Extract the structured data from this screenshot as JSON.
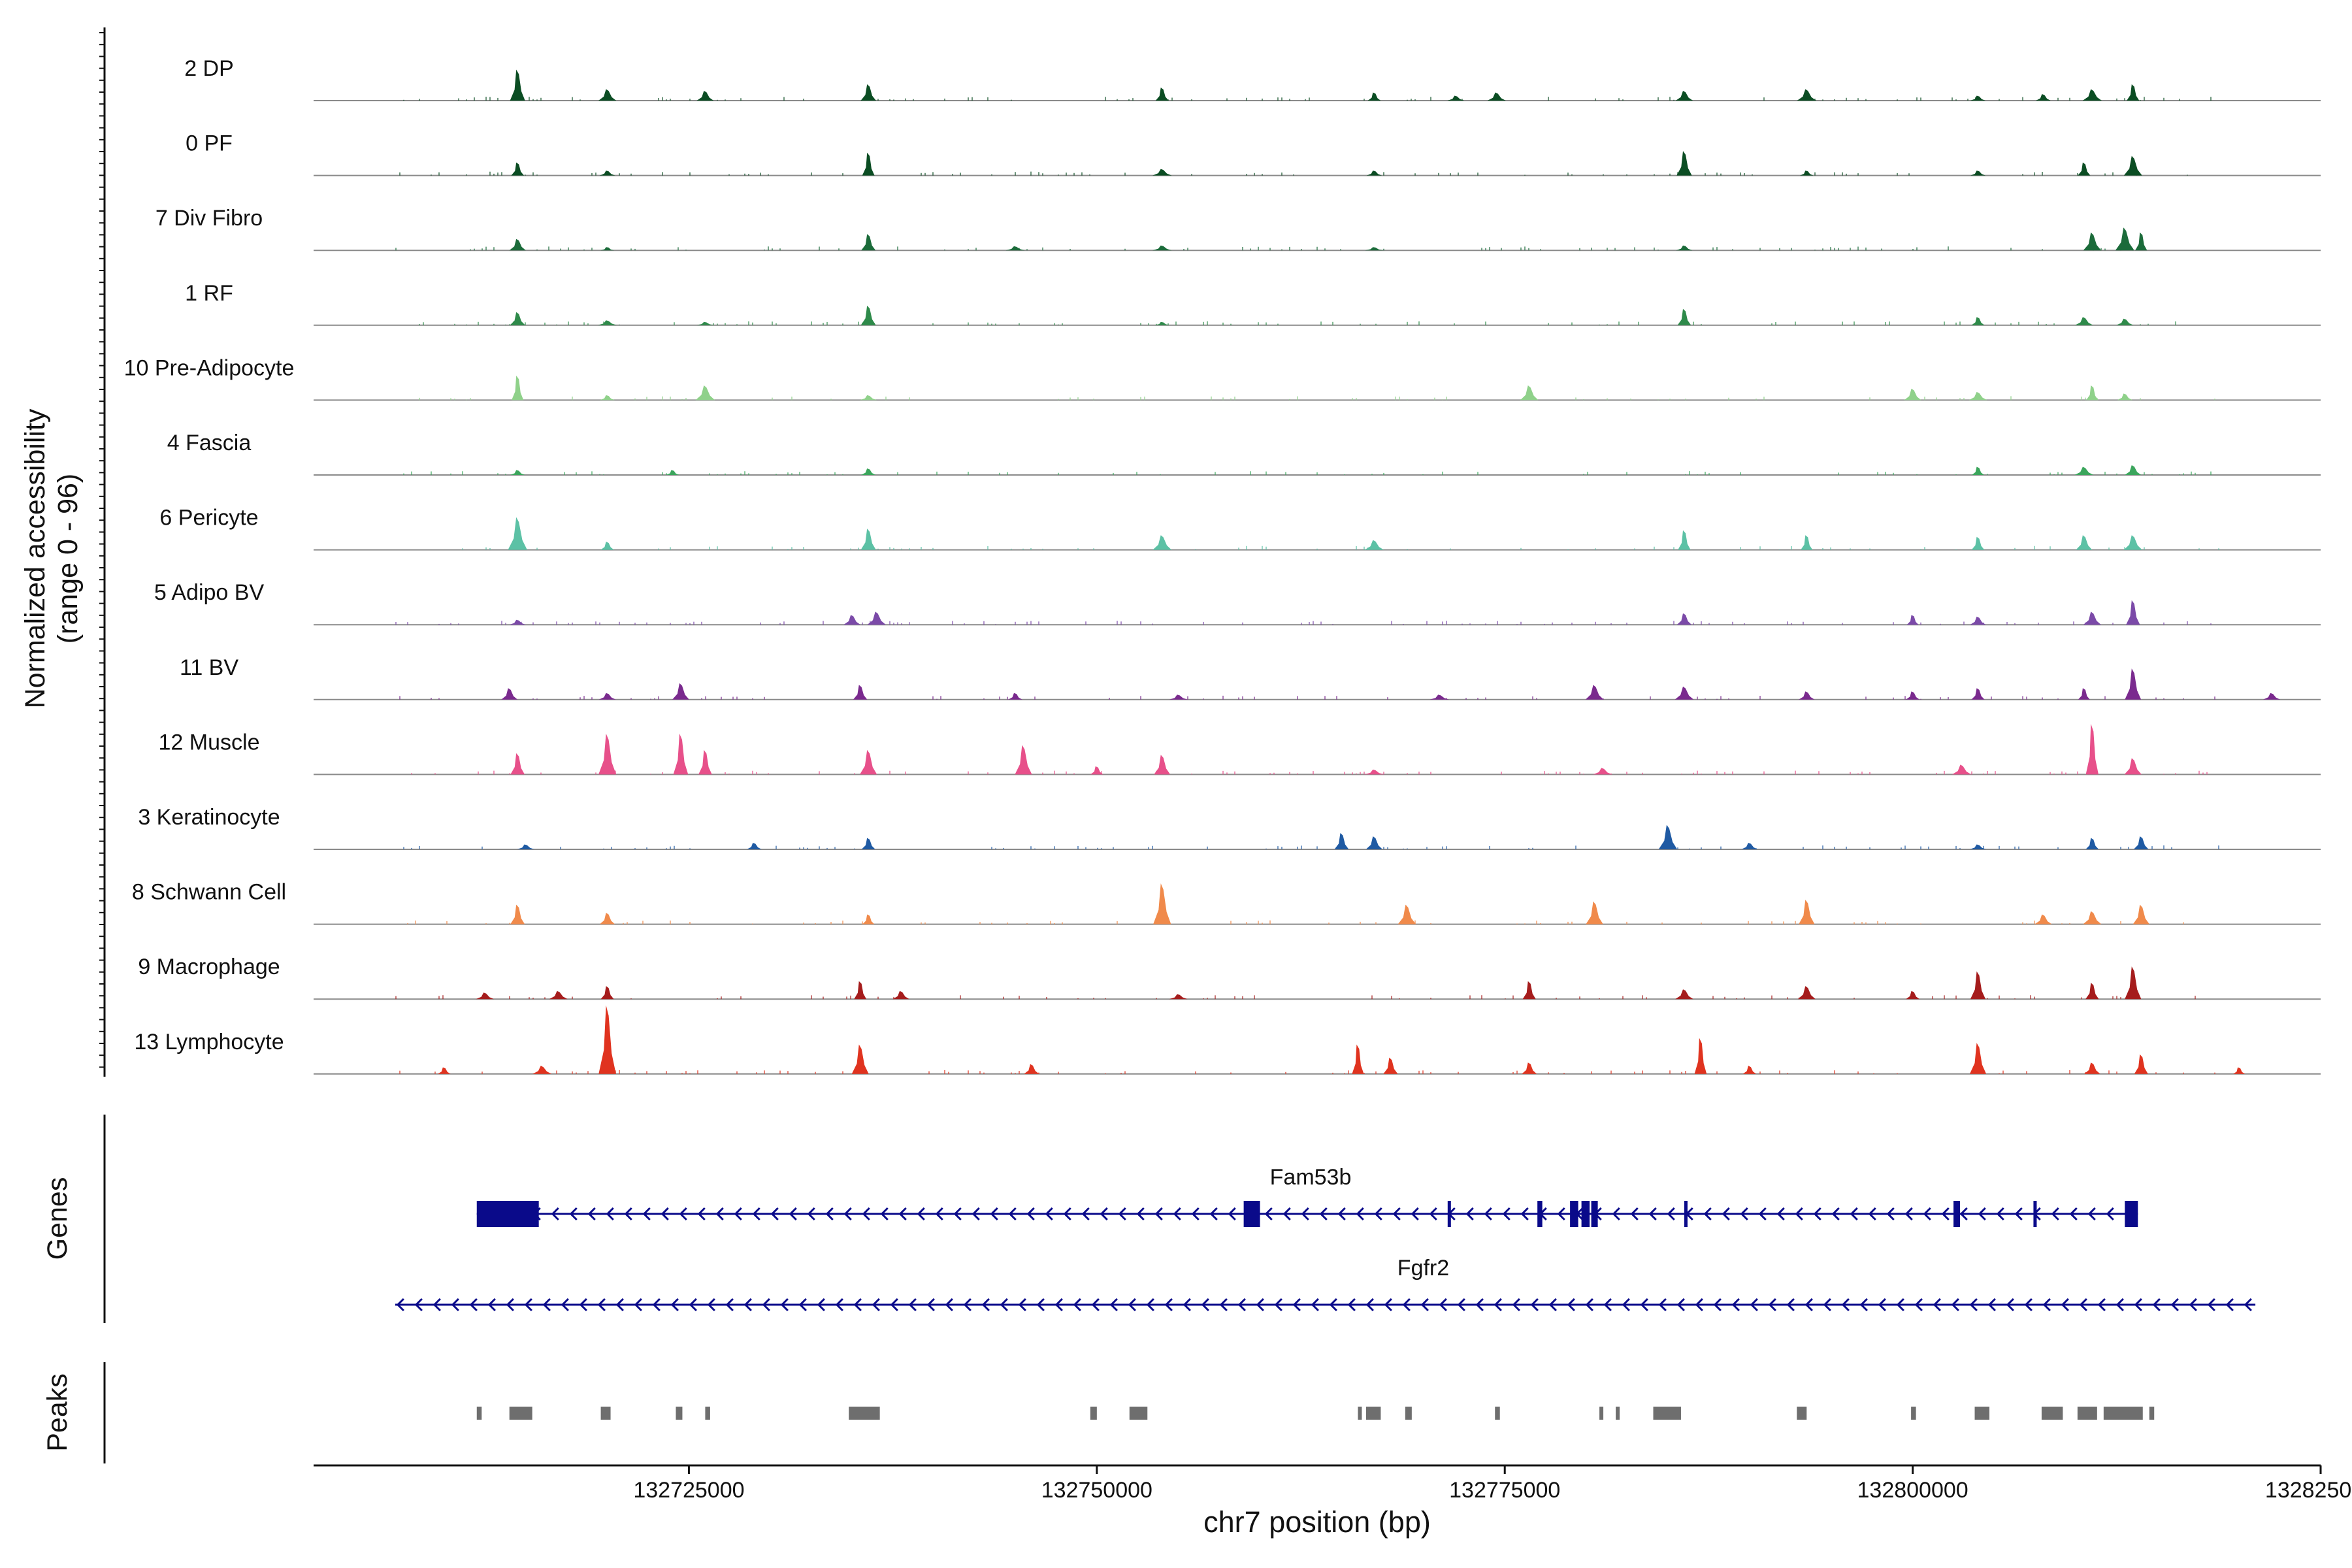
{
  "chart_data": {
    "type": "genome-track",
    "title": "",
    "ylabel_line1": "Normalized accessibility",
    "ylabel_line2": "(range 0 - 96)",
    "y_range": [
      0,
      96
    ],
    "xlabel": "chr7 position (bp)",
    "xlim": [
      132702000,
      132825000
    ],
    "xticks": [
      132725000,
      132750000,
      132775000,
      132800000,
      132825000
    ],
    "xtick_labels": [
      "132725000",
      "132750000",
      "132775000",
      "132800000",
      "132825000"
    ],
    "tracks": [
      {
        "name": "2 DP",
        "color": "#0b4d23",
        "peaks": [
          [
            132714500,
            38
          ],
          [
            132720000,
            14
          ],
          [
            132726000,
            12
          ],
          [
            132736000,
            20
          ],
          [
            132754000,
            16
          ],
          [
            132767000,
            10
          ],
          [
            132772000,
            6
          ],
          [
            132774500,
            10
          ],
          [
            132786000,
            12
          ],
          [
            132793500,
            14
          ],
          [
            132804000,
            6
          ],
          [
            132808000,
            8
          ],
          [
            132811000,
            14
          ],
          [
            132813500,
            20
          ]
        ]
      },
      {
        "name": "0 PF",
        "color": "#0b4d23",
        "peaks": [
          [
            132714500,
            16
          ],
          [
            132720000,
            6
          ],
          [
            132736000,
            28
          ],
          [
            132754000,
            8
          ],
          [
            132767000,
            6
          ],
          [
            132786000,
            30
          ],
          [
            132793500,
            6
          ],
          [
            132804000,
            6
          ],
          [
            132810500,
            16
          ],
          [
            132813500,
            24
          ]
        ]
      },
      {
        "name": "7 Div Fibro",
        "color": "#1b6b3a",
        "peaks": [
          [
            132714500,
            14
          ],
          [
            132720000,
            4
          ],
          [
            132736000,
            20
          ],
          [
            132745000,
            5
          ],
          [
            132754000,
            6
          ],
          [
            132767000,
            4
          ],
          [
            132786000,
            6
          ],
          [
            132811000,
            22
          ],
          [
            132813000,
            28
          ],
          [
            132814000,
            22
          ]
        ]
      },
      {
        "name": "1 RF",
        "color": "#2e8a4a",
        "peaks": [
          [
            132714500,
            16
          ],
          [
            132720000,
            6
          ],
          [
            132726000,
            4
          ],
          [
            132736000,
            24
          ],
          [
            132754000,
            4
          ],
          [
            132786000,
            20
          ],
          [
            132804000,
            10
          ],
          [
            132810500,
            10
          ],
          [
            132813000,
            8
          ]
        ]
      },
      {
        "name": "10 Pre-Adipocyte",
        "color": "#8fd18a",
        "peaks": [
          [
            132714500,
            30
          ],
          [
            132720000,
            6
          ],
          [
            132726000,
            18
          ],
          [
            132736000,
            6
          ],
          [
            132776500,
            18
          ],
          [
            132800000,
            14
          ],
          [
            132804000,
            10
          ],
          [
            132811000,
            18
          ],
          [
            132813000,
            8
          ]
        ]
      },
      {
        "name": "4 Fascia",
        "color": "#3ba55c",
        "peaks": [
          [
            132714500,
            6
          ],
          [
            132724000,
            6
          ],
          [
            132736000,
            8
          ],
          [
            132804000,
            10
          ],
          [
            132810500,
            10
          ],
          [
            132813500,
            12
          ]
        ]
      },
      {
        "name": "6 Pericyte",
        "color": "#5cc1a5",
        "peaks": [
          [
            132714500,
            40
          ],
          [
            132720000,
            10
          ],
          [
            132736000,
            26
          ],
          [
            132754000,
            18
          ],
          [
            132767000,
            12
          ],
          [
            132786000,
            24
          ],
          [
            132793500,
            18
          ],
          [
            132804000,
            16
          ],
          [
            132810500,
            18
          ],
          [
            132813500,
            18
          ]
        ]
      },
      {
        "name": "5 Adipo BV",
        "color": "#7b4aa8",
        "peaks": [
          [
            132714500,
            6
          ],
          [
            132735000,
            12
          ],
          [
            132736500,
            16
          ],
          [
            132786000,
            14
          ],
          [
            132800000,
            12
          ],
          [
            132804000,
            10
          ],
          [
            132811000,
            16
          ],
          [
            132813500,
            30
          ]
        ]
      },
      {
        "name": "11 BV",
        "color": "#7a2a8e",
        "peaks": [
          [
            132714000,
            14
          ],
          [
            132720000,
            8
          ],
          [
            132724500,
            20
          ],
          [
            132735500,
            18
          ],
          [
            132745000,
            8
          ],
          [
            132755000,
            6
          ],
          [
            132771000,
            6
          ],
          [
            132780500,
            18
          ],
          [
            132786000,
            16
          ],
          [
            132793500,
            10
          ],
          [
            132800000,
            10
          ],
          [
            132804000,
            14
          ],
          [
            132810500,
            14
          ],
          [
            132813500,
            38
          ],
          [
            132822000,
            8
          ]
        ]
      },
      {
        "name": "12 Muscle",
        "color": "#e7508a",
        "peaks": [
          [
            132714500,
            26
          ],
          [
            132720000,
            50
          ],
          [
            132724500,
            50
          ],
          [
            132726000,
            30
          ],
          [
            132736000,
            30
          ],
          [
            132745500,
            36
          ],
          [
            132750000,
            10
          ],
          [
            132754000,
            24
          ],
          [
            132767000,
            6
          ],
          [
            132781000,
            8
          ],
          [
            132803000,
            12
          ],
          [
            132811000,
            62
          ],
          [
            132813500,
            20
          ]
        ]
      },
      {
        "name": "3 Keratinocyte",
        "color": "#1f5aa3",
        "peaks": [
          [
            132715000,
            6
          ],
          [
            132729000,
            8
          ],
          [
            132736000,
            14
          ],
          [
            132765000,
            20
          ],
          [
            132767000,
            16
          ],
          [
            132785000,
            30
          ],
          [
            132790000,
            8
          ],
          [
            132804000,
            6
          ],
          [
            132811000,
            14
          ],
          [
            132814000,
            16
          ]
        ]
      },
      {
        "name": "8 Schwann Cell",
        "color": "#f08a4b",
        "peaks": [
          [
            132714500,
            24
          ],
          [
            132720000,
            14
          ],
          [
            132736000,
            12
          ],
          [
            132754000,
            50
          ],
          [
            132769000,
            24
          ],
          [
            132780500,
            28
          ],
          [
            132793500,
            30
          ],
          [
            132808000,
            12
          ],
          [
            132811000,
            16
          ],
          [
            132814000,
            24
          ]
        ]
      },
      {
        "name": "9 Macrophage",
        "color": "#a51c1c",
        "peaks": [
          [
            132712500,
            8
          ],
          [
            132717000,
            10
          ],
          [
            132720000,
            16
          ],
          [
            132735500,
            22
          ],
          [
            132738000,
            10
          ],
          [
            132755000,
            6
          ],
          [
            132776500,
            22
          ],
          [
            132786000,
            12
          ],
          [
            132793500,
            16
          ],
          [
            132800000,
            10
          ],
          [
            132804000,
            34
          ],
          [
            132811000,
            20
          ],
          [
            132813500,
            40
          ]
        ]
      },
      {
        "name": "13 Lymphocyte",
        "color": "#e0331f",
        "peaks": [
          [
            132710000,
            8
          ],
          [
            132716000,
            10
          ],
          [
            132720000,
            84
          ],
          [
            132735500,
            36
          ],
          [
            132746000,
            12
          ],
          [
            132766000,
            36
          ],
          [
            132768000,
            20
          ],
          [
            132776500,
            14
          ],
          [
            132787000,
            44
          ],
          [
            132790000,
            10
          ],
          [
            132804000,
            38
          ],
          [
            132811000,
            14
          ],
          [
            132814000,
            24
          ],
          [
            132820000,
            8
          ]
        ]
      }
    ],
    "genes_label": "Genes",
    "genes": [
      {
        "name": "Fam53b",
        "start": 132712000,
        "end": 132813800,
        "strand": "-",
        "exons": [
          [
            132712000,
            132715800
          ],
          [
            132759000,
            132760000
          ],
          [
            132771500,
            132771700
          ],
          [
            132777000,
            132777300
          ],
          [
            132779000,
            132779500
          ],
          [
            132779700,
            132780200
          ],
          [
            132780300,
            132780700
          ],
          [
            132786000,
            132786200
          ],
          [
            132802500,
            132802900
          ],
          [
            132807400,
            132807600
          ],
          [
            132813000,
            132813800
          ]
        ]
      },
      {
        "name": "Fgfr2",
        "start": 132707000,
        "end": 132821000,
        "strand": "-",
        "exons": []
      }
    ],
    "peaks_label": "Peaks",
    "peak_regions": [
      [
        132712000,
        132712300
      ],
      [
        132714000,
        132715400
      ],
      [
        132719600,
        132720200
      ],
      [
        132724200,
        132724600
      ],
      [
        132726000,
        132726300
      ],
      [
        132734800,
        132736700
      ],
      [
        132749600,
        132750000
      ],
      [
        132752000,
        132753100
      ],
      [
        132766000,
        132766100
      ],
      [
        132766500,
        132767400
      ],
      [
        132768900,
        132769300
      ],
      [
        132774400,
        132774700
      ],
      [
        132780800,
        132781000
      ],
      [
        132781800,
        132782000
      ],
      [
        132784100,
        132785800
      ],
      [
        132792900,
        132793500
      ],
      [
        132799900,
        132800200
      ],
      [
        132803800,
        132804700
      ],
      [
        132807900,
        132809200
      ],
      [
        132810100,
        132811300
      ],
      [
        132811700,
        132814100
      ],
      [
        132814500,
        132814800
      ]
    ]
  }
}
